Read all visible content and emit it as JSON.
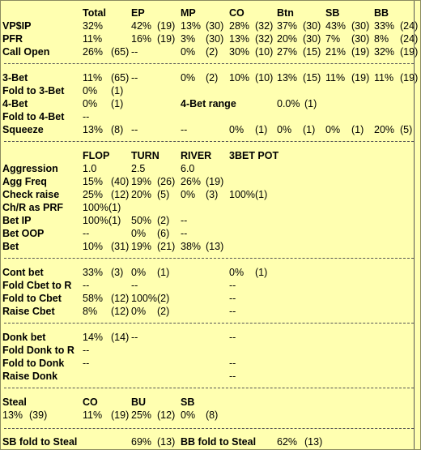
{
  "positions_block": {
    "headers": [
      "Total",
      "EP",
      "MP",
      "CO",
      "Btn",
      "SB",
      "BB"
    ],
    "rows": [
      {
        "label": "VP$IP",
        "total": "32%",
        "ep": "42%",
        "ep_n": "(19)",
        "mp": "13%",
        "mp_n": "(30)",
        "co": "28%",
        "co_n": "(32)",
        "btn": "37%",
        "btn_n": "(30)",
        "sb": "43%",
        "sb_n": "(30)",
        "bb": "33%",
        "bb_n": "(24)"
      },
      {
        "label": "PFR",
        "total": "11%",
        "ep": "16%",
        "ep_n": "(19)",
        "mp": "3%",
        "mp_n": "(30)",
        "co": "13%",
        "co_n": "(32)",
        "btn": "20%",
        "btn_n": "(30)",
        "sb": "7%",
        "sb_n": "(30)",
        "bb": "8%",
        "bb_n": "(24)"
      },
      {
        "label": "Call Open",
        "total": "26%",
        "total_n": "(65)",
        "ep": "--",
        "mp": "0%",
        "mp_n": "(2)",
        "co": "30%",
        "co_n": "(10)",
        "btn": "27%",
        "btn_n": "(15)",
        "sb": "21%",
        "sb_n": "(19)",
        "bb": "32%",
        "bb_n": "(19)"
      }
    ]
  },
  "threebet_block": {
    "three_bet": {
      "label": "3-Bet",
      "total": "11%",
      "total_n": "(65)",
      "ep": "--",
      "mp": "0%",
      "mp_n": "(2)",
      "co": "10%",
      "co_n": "(10)",
      "btn": "13%",
      "btn_n": "(15)",
      "sb": "11%",
      "sb_n": "(19)",
      "bb": "11%",
      "bb_n": "(19)"
    },
    "fold_to_3bet": {
      "label": "Fold to 3-Bet",
      "value": "0%",
      "n": "(1)"
    },
    "four_bet": {
      "label": "4-Bet",
      "value": "0%",
      "n": "(1)"
    },
    "four_bet_range": {
      "label": "4-Bet range",
      "value": "0.0%",
      "n": "(1)"
    },
    "fold_to_4bet": {
      "label": "Fold to 4-Bet",
      "value": "--"
    },
    "squeeze": {
      "label": "Squeeze",
      "total": "13%",
      "total_n": "(8)",
      "ep": "--",
      "mp": "--",
      "co": "0%",
      "co_n": "(1)",
      "btn": "0%",
      "btn_n": "(1)",
      "sb": "0%",
      "sb_n": "(1)",
      "bb": "20%",
      "bb_n": "(5)"
    }
  },
  "street_block": {
    "headers": [
      "FLOP",
      "TURN",
      "RIVER",
      "3BET POT"
    ],
    "rows": [
      {
        "label": "Aggression",
        "flop": "1.0",
        "turn": "2.5",
        "river": "6.0"
      },
      {
        "label": "Agg Freq",
        "flop": "15%",
        "flop_n": "(40)",
        "turn": "19%",
        "turn_n": "(26)",
        "river": "26%",
        "river_n": "(19)"
      },
      {
        "label": "Check raise",
        "flop": "25%",
        "flop_n": "(12)",
        "turn": "20%",
        "turn_n": "(5)",
        "river": "0%",
        "river_n": "(3)",
        "pot3": "100%(1)"
      },
      {
        "label": "Ch/R as PRF",
        "flop": "100%(1)"
      },
      {
        "label": "Bet IP",
        "flop": "100%(1)",
        "turn": "50%",
        "turn_n": "(2)",
        "river": "--"
      },
      {
        "label": "Bet OOP",
        "flop": "--",
        "turn": "0%",
        "turn_n": "(6)",
        "river": "--"
      },
      {
        "label": "Bet",
        "flop": "10%",
        "flop_n": "(31)",
        "turn": "19%",
        "turn_n": "(21)",
        "river": "38%",
        "river_n": "(13)"
      }
    ]
  },
  "cbet_block": {
    "rows": [
      {
        "label": "Cont bet",
        "flop": "33%",
        "flop_n": "(3)",
        "turn": "0%",
        "turn_n": "(1)",
        "pot3": "0%",
        "pot3_n": "(1)"
      },
      {
        "label": "Fold Cbet to R",
        "flop": "--",
        "turn": "--",
        "pot3": "--"
      },
      {
        "label": "Fold to Cbet",
        "flop": "58%",
        "flop_n": "(12)",
        "turn": "100%(2)",
        "pot3": "--"
      },
      {
        "label": "Raise Cbet",
        "flop": "8%",
        "flop_n": "(12)",
        "turn": "0%",
        "turn_n": "(2)",
        "pot3": "--"
      }
    ]
  },
  "donk_block": {
    "rows": [
      {
        "label": "Donk bet",
        "flop": "14%",
        "flop_n": "(14)",
        "turn": "--",
        "pot3": "--"
      },
      {
        "label": "Fold Donk to R",
        "flop": "--"
      },
      {
        "label": "Fold to Donk",
        "flop": "--",
        "pot3": "--"
      },
      {
        "label": "Raise Donk",
        "pot3": "--"
      }
    ]
  },
  "steal_block": {
    "label": "Steal",
    "headers": [
      "CO",
      "BU",
      "SB"
    ],
    "total": "13%",
    "total_n": "(39)",
    "co": "11%",
    "co_n": "(19)",
    "bu": "25%",
    "bu_n": "(12)",
    "sb": "0%",
    "sb_n": "(8)"
  },
  "fold_to_steal": {
    "sb_label": "SB fold to Steal",
    "sb_value": "69%",
    "sb_n": "(13)",
    "bb_label": "BB fold to Steal",
    "bb_value": "62%",
    "bb_n": "(13)"
  }
}
